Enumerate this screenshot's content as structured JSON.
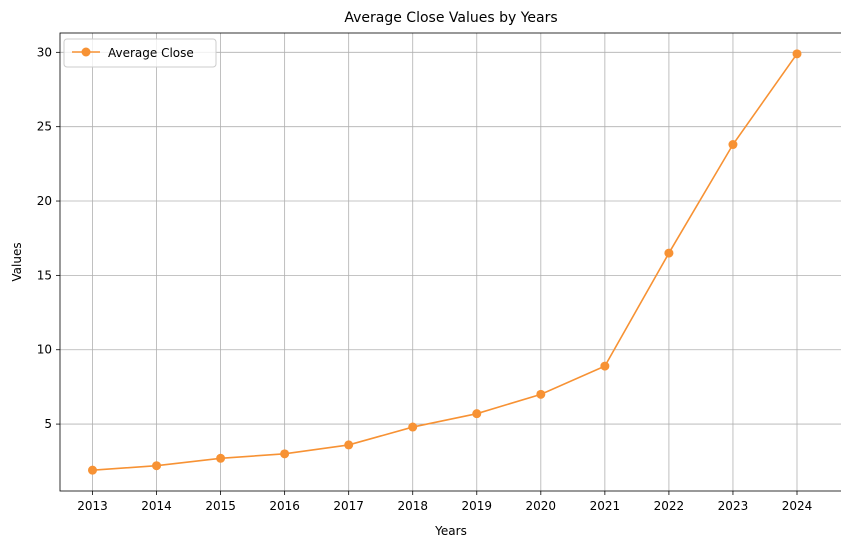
{
  "chart_data": {
    "type": "line",
    "title": "Average Close Values by Years",
    "xlabel": "Years",
    "ylabel": "Values",
    "categories": [
      "2013",
      "2014",
      "2015",
      "2016",
      "2017",
      "2018",
      "2019",
      "2020",
      "2021",
      "2022",
      "2023",
      "2024"
    ],
    "series": [
      {
        "name": "Average Close",
        "color": "#f79234",
        "values": [
          1.9,
          2.2,
          2.7,
          3.0,
          3.6,
          4.8,
          5.7,
          7.0,
          8.9,
          16.5,
          23.8,
          29.9
        ]
      }
    ],
    "ylim": [
      0.5,
      31.3
    ],
    "yticks": [
      5,
      10,
      15,
      20,
      25,
      30
    ],
    "grid": true,
    "legend_position": "top-left"
  }
}
